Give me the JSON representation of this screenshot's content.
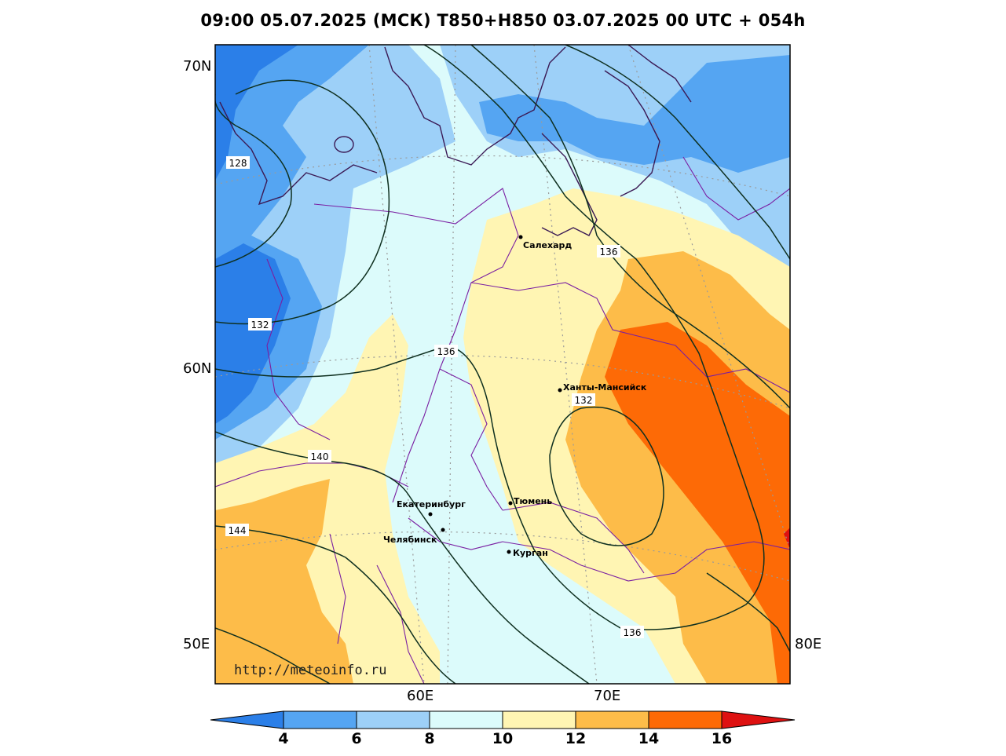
{
  "title": "09:00 05.07.2025 (МСК) T850+H850 03.07.2025 00 UTC + 054h",
  "watermark": "http://meteoinfo.ru",
  "lat_labels": [
    "70N",
    "60N",
    "50E"
  ],
  "lon_labels": [
    "60E",
    "70E",
    "80E"
  ],
  "cities": {
    "salekhard": "Салехард",
    "khanty": "Ханты-Мансийск",
    "ekaterinburg": "Екатеринбург",
    "tyumen": "Тюмень",
    "chelyabinsk": "Челябинск",
    "kurgan": "Курган"
  },
  "contour_labels": {
    "c128": "128",
    "c132a": "132",
    "c136a": "136",
    "c136b": "136",
    "c140": "140",
    "c144": "144",
    "c132b": "132",
    "c136c": "136"
  },
  "colorbar": {
    "ticks": [
      "4",
      "6",
      "8",
      "10",
      "12",
      "14",
      "16"
    ],
    "colors": [
      "#2b7fe8",
      "#55a5f2",
      "#9dd0f8",
      "#dcfbfb",
      "#fff5b3",
      "#fdbc49",
      "#fd6a06",
      "#de1111"
    ]
  }
}
